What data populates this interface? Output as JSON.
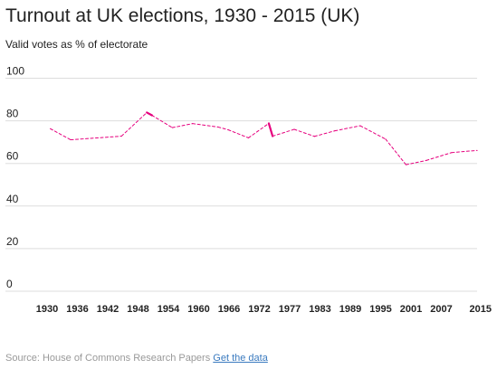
{
  "chart_data": {
    "type": "line",
    "title": "Turnout at UK elections, 1930 - 2015 (UK)",
    "subtitle": "Valid votes as % of electorate",
    "ylim": [
      0,
      100
    ],
    "y_ticks": [
      "0",
      "20",
      "40",
      "60",
      "80",
      "100"
    ],
    "x_tick_labels": [
      "1930",
      "1936",
      "1942",
      "1948",
      "1954",
      "1960",
      "1966",
      "1972",
      "1977",
      "1983",
      "1989",
      "1995",
      "2001",
      "2007",
      "2015"
    ],
    "grid": true,
    "line_color": "#e6007e",
    "series": [
      {
        "points": [
          {
            "x": 1931,
            "y": 76.3
          },
          {
            "x": 1935,
            "y": 71.1
          },
          {
            "x": 1945,
            "y": 72.8
          },
          {
            "x": 1950,
            "y": 83.9
          },
          {
            "x": 1951,
            "y": 82.6
          },
          {
            "x": 1955,
            "y": 76.8
          },
          {
            "x": 1959,
            "y": 78.7
          },
          {
            "x": 1964,
            "y": 77.1
          },
          {
            "x": 1966,
            "y": 75.8
          },
          {
            "x": 1970,
            "y": 72.0
          },
          {
            "x": 1974,
            "y": 78.8
          },
          {
            "x": 1974.75,
            "y": 72.8
          },
          {
            "x": 1979,
            "y": 76.0
          },
          {
            "x": 1983,
            "y": 72.7
          },
          {
            "x": 1987,
            "y": 75.3
          },
          {
            "x": 1992,
            "y": 77.7
          },
          {
            "x": 1997,
            "y": 71.4
          },
          {
            "x": 2001,
            "y": 59.4
          },
          {
            "x": 2005,
            "y": 61.4
          },
          {
            "x": 2010,
            "y": 65.1
          },
          {
            "x": 2015,
            "y": 66.1
          }
        ],
        "solid_segments": [
          [
            3,
            4
          ],
          [
            10,
            11
          ]
        ]
      }
    ]
  },
  "footer": {
    "source": "Source: House of Commons Research Papers",
    "link": "Get the data"
  }
}
